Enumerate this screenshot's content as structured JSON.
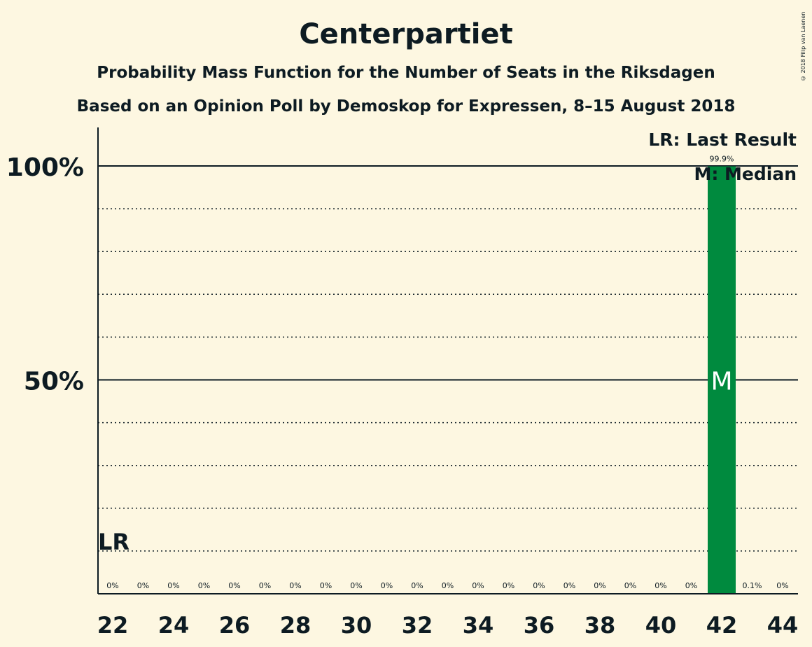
{
  "title": "Centerpartiet",
  "subtitle": "Probability Mass Function for the Number of Seats in the Riksdagen",
  "subtitle2": "Based on an Opinion Poll by Demoskop for Expressen, 8–15 August 2018",
  "copyright": "© 2018 Filip van Laenen",
  "legend": {
    "last_result": "LR: Last Result",
    "median": "M: Median"
  },
  "colors": {
    "background": "#fdf7e1",
    "bar": "#008a3e",
    "text": "#0d1b22"
  },
  "chart_data": {
    "type": "bar",
    "x": [
      22,
      23,
      24,
      25,
      26,
      27,
      28,
      29,
      30,
      31,
      32,
      33,
      34,
      35,
      36,
      37,
      38,
      39,
      40,
      41,
      42,
      43,
      44
    ],
    "values": [
      0,
      0,
      0,
      0,
      0,
      0,
      0,
      0,
      0,
      0,
      0,
      0,
      0,
      0,
      0,
      0,
      0,
      0,
      0,
      0,
      99.9,
      0.1,
      0
    ],
    "value_labels": [
      "0%",
      "0%",
      "0%",
      "0%",
      "0%",
      "0%",
      "0%",
      "0%",
      "0%",
      "0%",
      "0%",
      "0%",
      "0%",
      "0%",
      "0%",
      "0%",
      "0%",
      "0%",
      "0%",
      "0%",
      "99.9%",
      "0.1%",
      "0%"
    ],
    "x_tick_labels": [
      "22",
      "24",
      "26",
      "28",
      "30",
      "32",
      "34",
      "36",
      "38",
      "40",
      "42",
      "44"
    ],
    "y_tick_labels": [
      {
        "value": 50,
        "label": "50%"
      },
      {
        "value": 100,
        "label": "100%"
      }
    ],
    "ylim": [
      0,
      110
    ],
    "gridlines_minor_step": 10,
    "last_result": {
      "x": 22,
      "label": "LR"
    },
    "median": {
      "x": 42,
      "label": "M"
    }
  }
}
